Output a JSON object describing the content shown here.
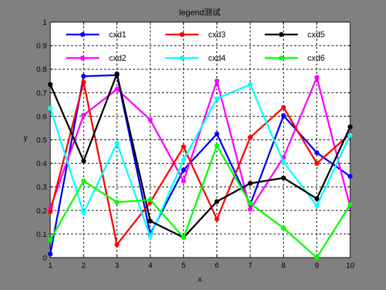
{
  "chart_data": {
    "type": "line",
    "title": "legend测试",
    "xlabel": "x",
    "ylabel": "y",
    "x": [
      1,
      2,
      3,
      4,
      5,
      6,
      7,
      8,
      9,
      10
    ],
    "xlim": [
      1,
      10
    ],
    "ylim": [
      0,
      1
    ],
    "xticks": [
      "1",
      "2",
      "3",
      "4",
      "5",
      "6",
      "7",
      "8",
      "9",
      "10"
    ],
    "yticks": [
      "0",
      "0.1",
      "0.2",
      "0.3",
      "0.4",
      "0.5",
      "0.6",
      "0.7",
      "0.8",
      "0.9",
      "1"
    ],
    "grid": true,
    "legend_position": "top",
    "colors": {
      "figure_background": "#808080",
      "axes_background": "#ffffff",
      "grid": "#000000"
    },
    "series": [
      {
        "name": "cxd1",
        "color": "#0000ff",
        "values": [
          0.015,
          0.77,
          0.775,
          0.1,
          0.372,
          0.525,
          0.225,
          0.603,
          0.445,
          0.345
        ]
      },
      {
        "name": "cxd2",
        "color": "#ff00ff",
        "values": [
          0.21,
          0.605,
          0.715,
          0.585,
          0.325,
          0.75,
          0.205,
          0.425,
          0.765,
          0.215
        ]
      },
      {
        "name": "cxd3",
        "color": "#ff0000",
        "values": [
          0.195,
          0.745,
          0.055,
          0.235,
          0.47,
          0.163,
          0.51,
          0.638,
          0.4,
          0.525
        ]
      },
      {
        "name": "cxd4",
        "color": "#00ffff",
        "values": [
          0.635,
          0.19,
          0.485,
          0.09,
          0.415,
          0.675,
          0.735,
          0.405,
          0.22,
          0.52
        ]
      },
      {
        "name": "cxd5",
        "color": "#000000",
        "values": [
          0.735,
          0.41,
          0.78,
          0.155,
          0.085,
          0.238,
          0.315,
          0.338,
          0.25,
          0.555
        ]
      },
      {
        "name": "cxd6",
        "color": "#00ff00",
        "values": [
          0.075,
          0.325,
          0.235,
          0.245,
          0.085,
          0.475,
          0.23,
          0.125,
          0.0,
          0.225
        ]
      }
    ]
  }
}
